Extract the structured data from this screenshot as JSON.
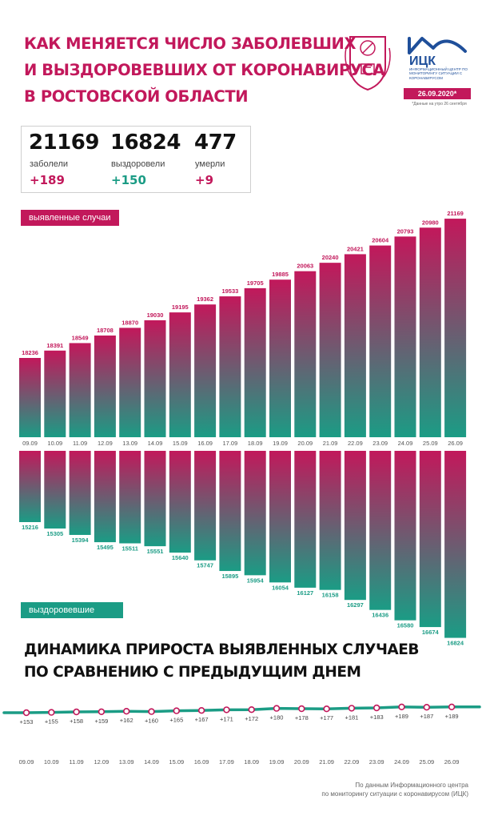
{
  "header": {
    "title_lines": [
      "Как меняется число заболевших",
      "и выздоровевших от коронавируса",
      "в Ростовской области"
    ],
    "org_short": "ИЦК",
    "org_full": "Информационный центр по мониторингу ситуации с коронавирусом",
    "date_badge": "26.09.2020*",
    "date_note": "*Данные на утро 26 сентября"
  },
  "stats": [
    {
      "value": "21169",
      "label": "заболели",
      "delta": "+189",
      "color": "#c2185b"
    },
    {
      "value": "16824",
      "label": "выздоровели",
      "delta": "+150",
      "color": "#1b9c85"
    },
    {
      "value": "477",
      "label": "умерли",
      "delta": "+9",
      "color": "#c2185b"
    }
  ],
  "labels": {
    "cases": "выявленные случаи",
    "recovered": "выздоровевшие"
  },
  "colors": {
    "cases": "#c2185b",
    "recovered": "#1b9c85",
    "line": "#1b9c85",
    "marker": "#c2185b"
  },
  "chart_data": [
    {
      "type": "bar",
      "categories": [
        "09.09",
        "10.09",
        "11.09",
        "12.09",
        "13.09",
        "14.09",
        "15.09",
        "16.09",
        "17.09",
        "18.09",
        "19.09",
        "20.09",
        "21.09",
        "22.09",
        "23.09",
        "24.09",
        "25.09",
        "26.09"
      ],
      "series": [
        {
          "name": "выявленные случаи",
          "values": [
            18236,
            18391,
            18549,
            18708,
            18870,
            19030,
            19195,
            19362,
            19533,
            19705,
            19885,
            20063,
            20240,
            20421,
            20604,
            20793,
            20980,
            21169
          ]
        },
        {
          "name": "выздоровевшие",
          "values": [
            15216,
            15305,
            15394,
            15495,
            15511,
            15551,
            15640,
            15747,
            15895,
            15954,
            16054,
            16127,
            16158,
            16297,
            16436,
            16580,
            16674,
            16824
          ]
        }
      ]
    },
    {
      "type": "line",
      "title": "Динамика прироста выявленных случаев по сравнению с предыдущим днем",
      "categories": [
        "09.09",
        "10.09",
        "11.09",
        "12.09",
        "13.09",
        "14.09",
        "15.09",
        "16.09",
        "17.09",
        "18.09",
        "19.09",
        "20.09",
        "21.09",
        "22.09",
        "23.09",
        "24.09",
        "25.09",
        "26.09"
      ],
      "values": [
        153,
        155,
        158,
        159,
        162,
        160,
        165,
        167,
        171,
        172,
        180,
        178,
        177,
        181,
        183,
        189,
        187,
        189
      ],
      "labels": [
        "+153",
        "+155",
        "+158",
        "+159",
        "+162",
        "+160",
        "+165",
        "+167",
        "+171",
        "+172",
        "+180",
        "+178",
        "+177",
        "+181",
        "+183",
        "+189",
        "+187",
        "+189"
      ]
    }
  ],
  "subtitle_lines": [
    "Динамика прироста выявленных случаев",
    "по сравнению с предыдущим днем"
  ],
  "source_lines": [
    "По данным Информационного центра",
    "по мониторингу ситуации с коронавирусом (ИЦК)"
  ]
}
